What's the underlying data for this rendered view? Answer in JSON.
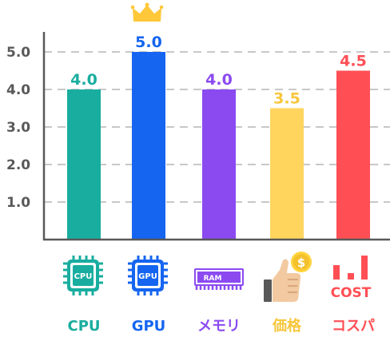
{
  "chart_data": {
    "type": "bar",
    "categories": [
      "CPU",
      "GPU",
      "メモリ",
      "価格",
      "コスパ"
    ],
    "values": [
      4.0,
      5.0,
      4.0,
      3.5,
      4.5
    ],
    "value_labels": [
      "4.0",
      "5.0",
      "4.0",
      "3.5",
      "4.5"
    ],
    "colors": [
      "#19AD9F",
      "#1565F0",
      "#8B4AF0",
      "#FFD55E",
      "#FF4F55"
    ],
    "label_colors": [
      "#19AD9F",
      "#1565F0",
      "#8B4AF0",
      "#F7C63C",
      "#FF4F55"
    ],
    "yticks": [
      "1.0",
      "2.0",
      "3.0",
      "4.0",
      "5.0"
    ],
    "ytick_values": [
      1,
      2,
      3,
      4,
      5
    ],
    "ylim": [
      0,
      5.0
    ],
    "grid": true,
    "highlight": "GPU"
  },
  "icons": [
    {
      "name": "cpu-chip-icon",
      "text": "CPU"
    },
    {
      "name": "gpu-chip-icon",
      "text": "GPU"
    },
    {
      "name": "ram-module-icon",
      "text": "RAM"
    },
    {
      "name": "thumbs-up-coin-icon",
      "text": "$"
    },
    {
      "name": "cost-bars-icon",
      "text": "COST"
    }
  ],
  "crown_icon": "crown-icon"
}
